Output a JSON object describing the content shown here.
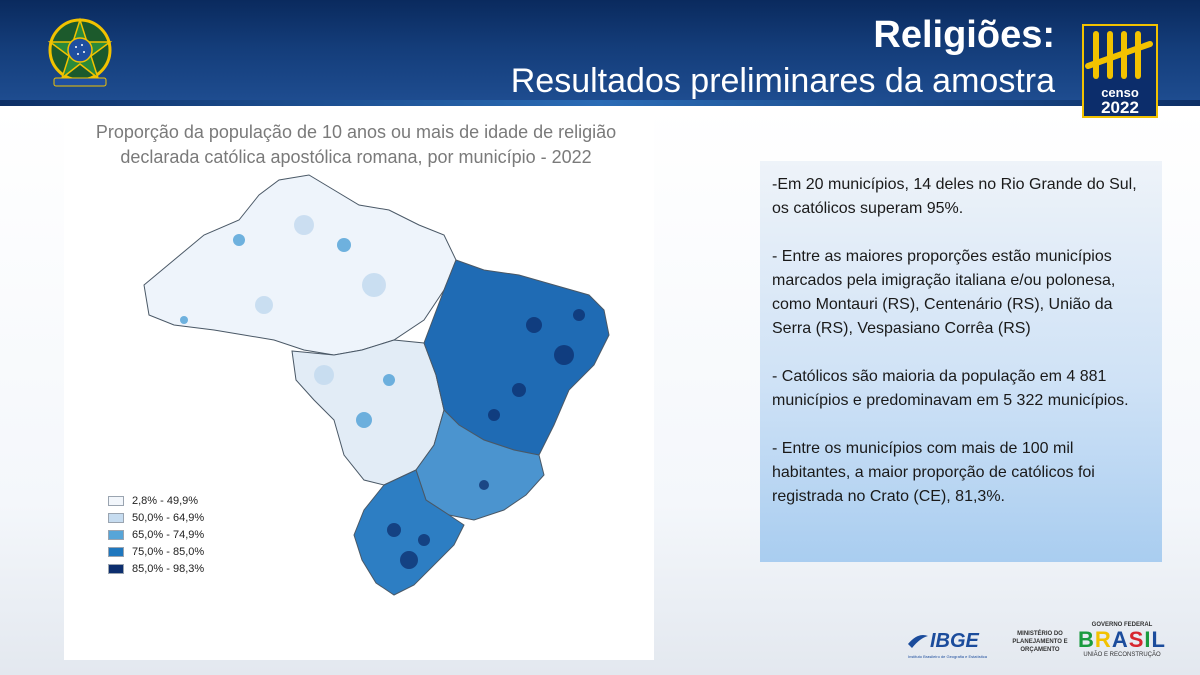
{
  "header": {
    "title": "Religiões:",
    "subtitle": "Resultados preliminares da amostra",
    "censo_label": "censo",
    "censo_year": "2022"
  },
  "map": {
    "caption_line1": "Proporção da população de 10 anos ou mais de idade de religião",
    "caption_line2": "declarada católica apostólica romana, por município - 2022",
    "legend": [
      {
        "label": "2,8% - 49,9%",
        "color": "#f2f6fb"
      },
      {
        "label": "50,0% - 64,9%",
        "color": "#c6dcf0"
      },
      {
        "label": "65,0% - 74,9%",
        "color": "#57a5d8"
      },
      {
        "label": "75,0% - 85,0%",
        "color": "#1f77be"
      },
      {
        "label": "85,0% - 98,3%",
        "color": "#0c2e6e"
      }
    ]
  },
  "info": {
    "paragraphs": [
      "-Em 20 municípios, 14 deles no Rio Grande do Sul, os católicos superam 95%.",
      "- Entre as maiores proporções estão municípios marcados pela imigração italiana e/ou polonesa, como Montauri (RS), Centenário (RS), União da Serra (RS), Vespasiano Corrêa (RS)",
      "- Católicos são maioria da população em 4 881 municípios e predominavam em 5 322 municípios.",
      "- Entre os municípios com mais de 100 mil habitantes, a maior proporção de católicos foi registrada no Crato (CE), 81,3%."
    ]
  },
  "footer": {
    "ibge": "IBGE",
    "ibge_sub": "Instituto Brasileiro de Geografia e Estatística",
    "ministerio": "MINISTÉRIO DO PLANEJAMENTO E ORÇAMENTO",
    "governo_top": "GOVERNO FEDERAL",
    "governo_brasil": "BRASIL",
    "governo_bottom": "UNIÃO E RECONSTRUÇÃO"
  }
}
